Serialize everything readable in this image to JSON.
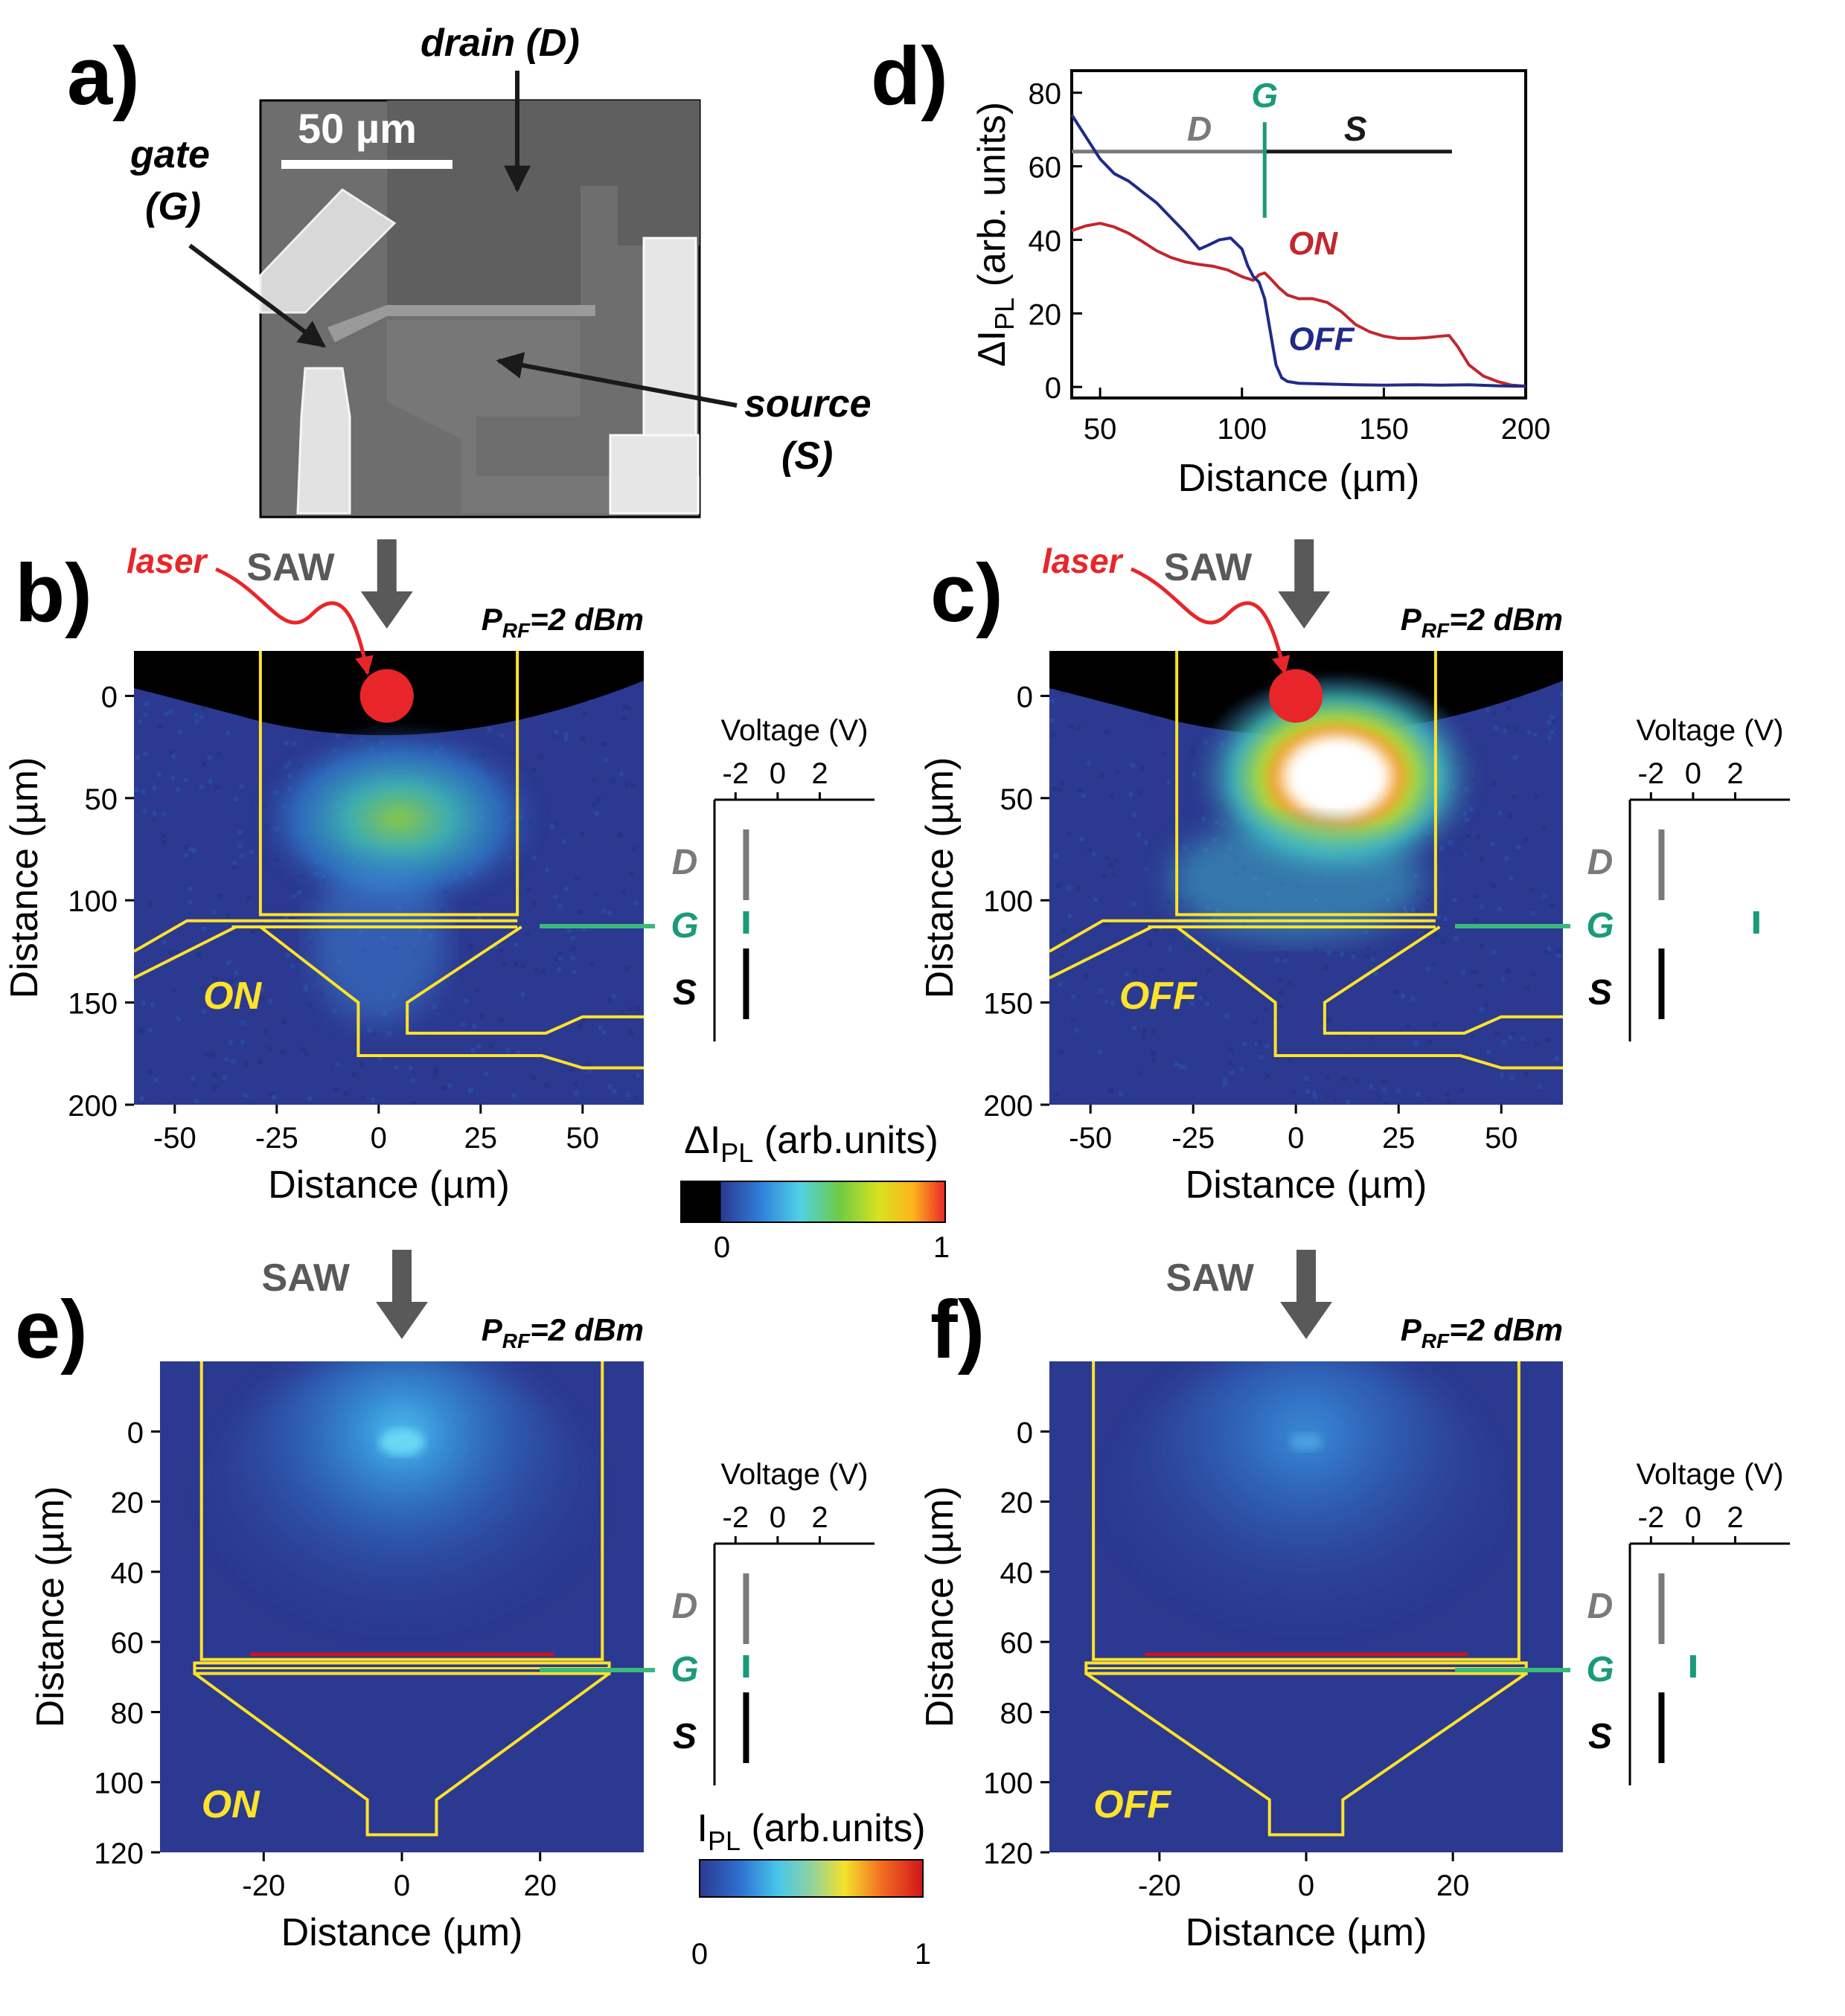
{
  "panel_labels": {
    "a": "a)",
    "b": "b)",
    "c": "c)",
    "d": "d)",
    "e": "e)",
    "f": "f)"
  },
  "panel_a": {
    "scale_bar": "50 µm",
    "drain": "drain (D)",
    "gate_line1": "gate",
    "gate_line2": "(G)",
    "source_line1": "source",
    "source_line2": "(S)"
  },
  "colors": {
    "gate_green": "#1b9a7a",
    "trace_on": "#c1272d",
    "trace_off": "#1f2a8a",
    "outline_yellow": "#ffe32a",
    "map_bg": "#2b3990",
    "laser_red": "#e8262a",
    "arrow_grey": "#595959"
  },
  "common": {
    "saw": "SAW",
    "prf_p": "P",
    "prf_sub": "RF",
    "prf_rest": "=2 dBm",
    "laser": "laser",
    "xlabel": "Distance (µm)",
    "ylabel": "Distance (µm)",
    "voltage_label": "Voltage (V)",
    "D": "D",
    "G": "G",
    "S": "S"
  },
  "colorbar_exp": {
    "label_prefix": "ΔI",
    "label_sub": "PL",
    "label_rest": " (arb.units)",
    "min": "0",
    "max": "1"
  },
  "colorbar_sim": {
    "label_prefix": "I",
    "label_sub": "PL",
    "label_rest": " (arb.units)",
    "min": "0",
    "max": "1"
  },
  "chart_data": [
    {
      "id": "d",
      "type": "line",
      "xlabel": "Distance (µm)",
      "ylabel": "ΔI_PL (arb. units)",
      "xlim": [
        40,
        200
      ],
      "ylim": [
        -3,
        86
      ],
      "xticks": [
        50,
        100,
        150,
        200
      ],
      "yticks": [
        0,
        20,
        40,
        60,
        80
      ],
      "region_labels": {
        "D": "D",
        "G": "G",
        "S": "S"
      },
      "region_line": {
        "y": 64,
        "d_x": [
          40,
          108
        ],
        "s_x": [
          108,
          174
        ],
        "gate_x": 108,
        "gate_y": [
          46,
          72
        ]
      },
      "series": [
        {
          "name": "ON",
          "x": [
            40,
            45,
            50,
            55,
            60,
            65,
            70,
            75,
            80,
            85,
            90,
            95,
            100,
            104,
            106,
            108,
            110,
            113,
            116,
            120,
            125,
            130,
            135,
            140,
            145,
            150,
            155,
            160,
            165,
            170,
            173,
            176,
            180,
            185,
            190,
            195,
            200
          ],
          "y": [
            42.5,
            43.8,
            44.5,
            43.5,
            41.8,
            39.5,
            37.0,
            35.2,
            34.0,
            33.3,
            32.8,
            31.8,
            30.0,
            29.0,
            30.5,
            31.0,
            29.5,
            27.0,
            25.0,
            24.0,
            24.0,
            23.0,
            20.5,
            17.0,
            15.0,
            13.8,
            13.2,
            13.2,
            13.4,
            13.8,
            14.0,
            11.0,
            6.0,
            3.0,
            1.5,
            0.5,
            0.2
          ]
        },
        {
          "name": "OFF",
          "x": [
            40,
            45,
            50,
            55,
            60,
            65,
            70,
            75,
            80,
            85,
            88,
            92,
            96,
            100,
            102,
            104,
            106,
            108,
            110,
            112,
            114,
            116,
            120,
            130,
            140,
            150,
            160,
            170,
            180,
            190,
            200
          ],
          "y": [
            74.0,
            68.0,
            62.0,
            58.0,
            56.0,
            53.0,
            50.0,
            46.0,
            42.0,
            37.5,
            38.5,
            40.0,
            40.5,
            37.5,
            33.0,
            30.0,
            28.5,
            24.0,
            15.0,
            6.0,
            2.5,
            1.5,
            1.0,
            0.8,
            0.6,
            0.5,
            0.6,
            0.5,
            0.6,
            0.3,
            0.2
          ]
        }
      ],
      "trace_labels": {
        "ON": "ON",
        "OFF": "OFF"
      }
    },
    {
      "id": "b",
      "type": "heatmap",
      "state": "ON",
      "xlim": [
        -60,
        65
      ],
      "ylim": [
        200,
        -22
      ],
      "xticks": [
        -50,
        -25,
        0,
        25,
        50
      ],
      "yticks": [
        0,
        50,
        100,
        150,
        200
      ],
      "xlabel": "Distance (µm)",
      "ylabel": "Distance (µm)",
      "voltage": {
        "ticks": [
          -2,
          0,
          2
        ],
        "xlim": [
          -3,
          4.6
        ],
        "D": -1.5,
        "G": -1.5,
        "S": -1.5
      }
    },
    {
      "id": "c",
      "type": "heatmap",
      "state": "OFF",
      "xlim": [
        -60,
        65
      ],
      "ylim": [
        200,
        -22
      ],
      "xticks": [
        -50,
        -25,
        0,
        25,
        50
      ],
      "yticks": [
        0,
        50,
        100,
        150,
        200
      ],
      "xlabel": "Distance (µm)",
      "ylabel": "Distance (µm)",
      "voltage": {
        "ticks": [
          -2,
          0,
          2
        ],
        "xlim": [
          -3,
          4.6
        ],
        "D": -1.5,
        "G": 3.0,
        "S": -1.5
      }
    },
    {
      "id": "e",
      "type": "heatmap",
      "state": "ON",
      "xlim": [
        -35,
        35
      ],
      "ylim": [
        120,
        -20
      ],
      "xticks": [
        -20,
        0,
        20
      ],
      "yticks": [
        0,
        20,
        40,
        60,
        80,
        100,
        120
      ],
      "xlabel": "Distance (µm)",
      "ylabel": "Distance (µm)",
      "voltage": {
        "ticks": [
          -2,
          0,
          2
        ],
        "xlim": [
          -3,
          4.6
        ],
        "D": -1.5,
        "G": -1.5,
        "S": -1.5
      }
    },
    {
      "id": "f",
      "type": "heatmap",
      "state": "OFF",
      "xlim": [
        -35,
        35
      ],
      "ylim": [
        120,
        -20
      ],
      "xticks": [
        -20,
        0,
        20
      ],
      "yticks": [
        0,
        20,
        40,
        60,
        80,
        100,
        120
      ],
      "xlabel": "Distance (µm)",
      "ylabel": "Distance (µm)",
      "voltage": {
        "ticks": [
          -2,
          0,
          2
        ],
        "xlim": [
          -3,
          4.6
        ],
        "D": -1.5,
        "G": 0.0,
        "S": -1.5
      }
    }
  ]
}
